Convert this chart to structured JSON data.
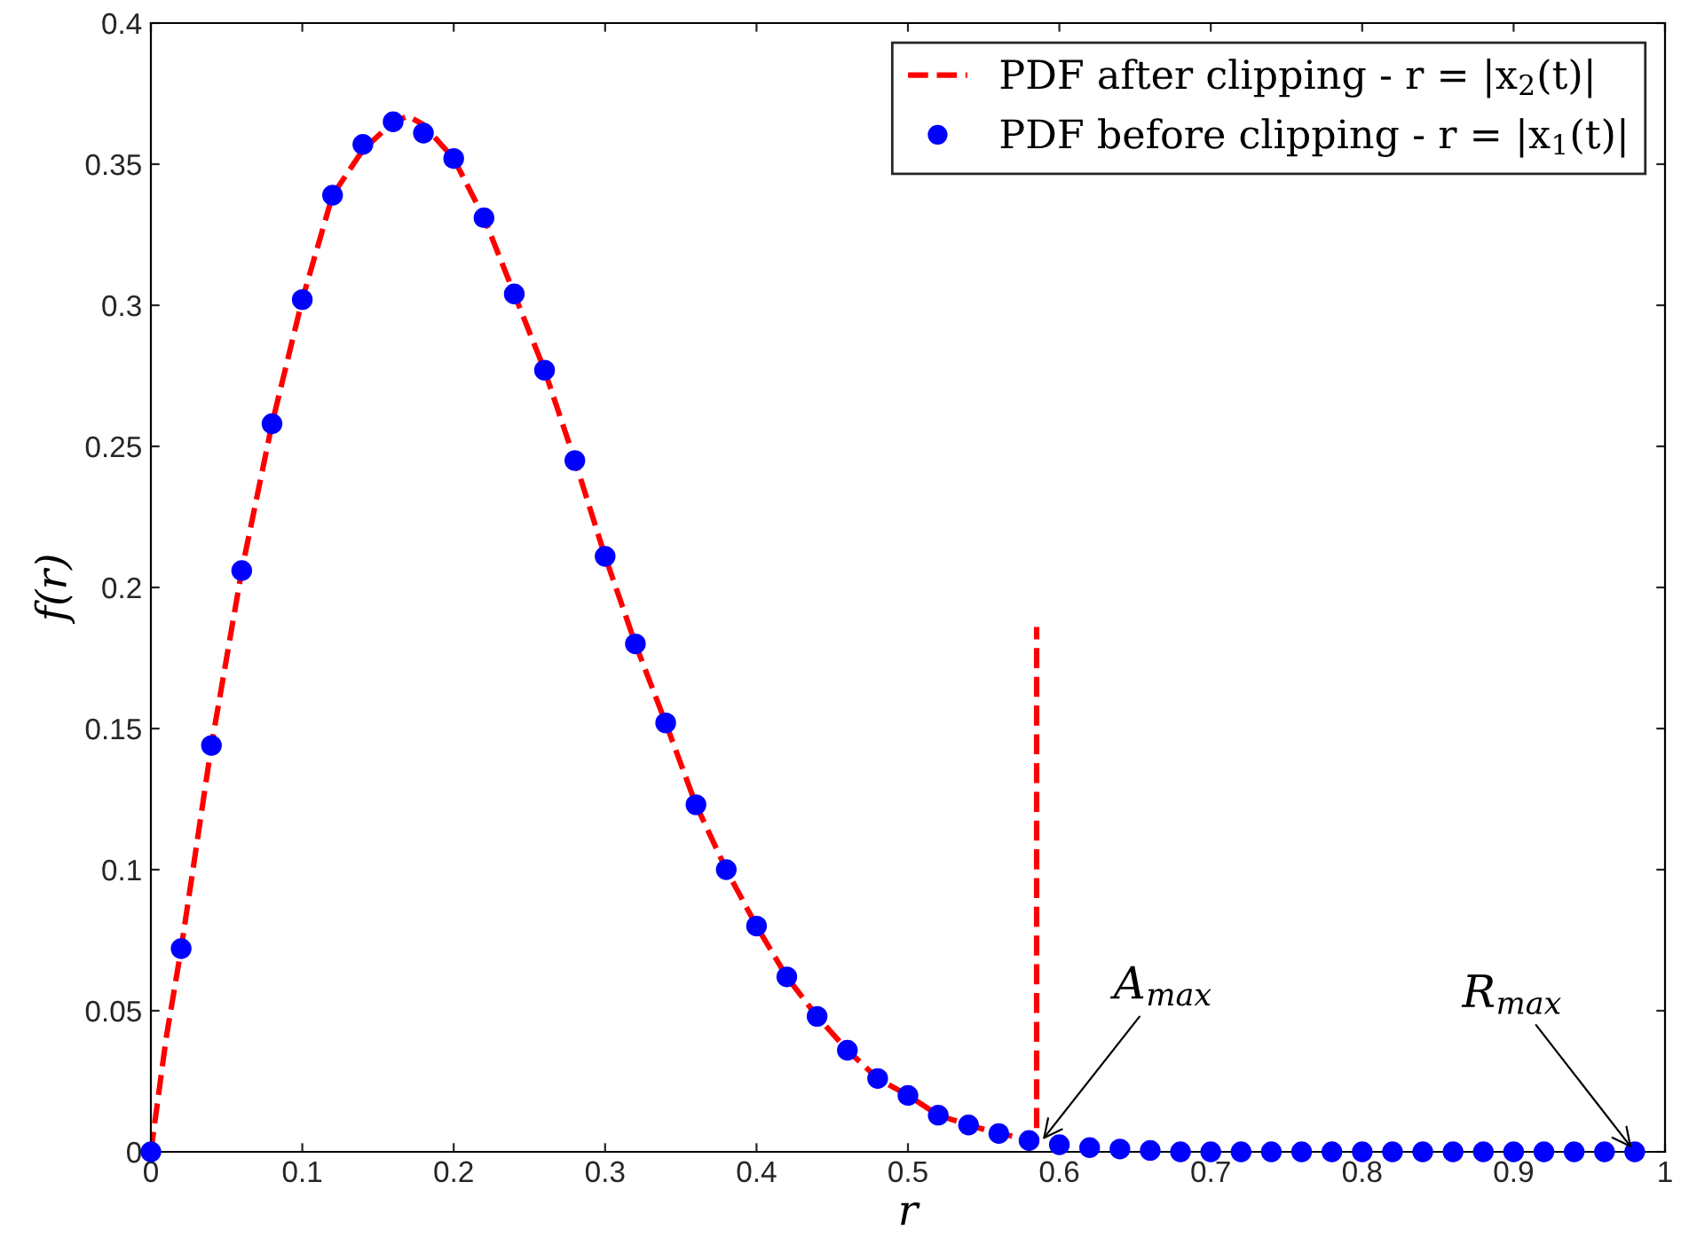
{
  "chart_data": {
    "type": "line",
    "xlabel": "r",
    "ylabel": "f(r)",
    "xlim": [
      0,
      1
    ],
    "ylim": [
      0,
      0.4
    ],
    "xticks": [
      0,
      0.1,
      0.2,
      0.3,
      0.4,
      0.5,
      0.6,
      0.7,
      0.8,
      0.9,
      1
    ],
    "yticks": [
      0,
      0.05,
      0.1,
      0.15,
      0.2,
      0.25,
      0.3,
      0.35,
      0.4
    ],
    "grid": false,
    "legend": "top right",
    "series": [
      {
        "name": "PDF after clipping - r = |x$_{2}$(t)|",
        "color": "#ff0000",
        "line_style": "dashed",
        "marker": "none",
        "x": [
          0,
          0.01,
          0.02,
          0.04,
          0.06,
          0.08,
          0.1,
          0.12,
          0.14,
          0.16,
          0.17,
          0.18,
          0.2,
          0.22,
          0.24,
          0.26,
          0.28,
          0.3,
          0.32,
          0.34,
          0.36,
          0.38,
          0.4,
          0.42,
          0.44,
          0.46,
          0.48,
          0.5,
          0.52,
          0.54,
          0.56,
          0.58,
          0.585,
          0.585
        ],
        "values": [
          0,
          0.04,
          0.072,
          0.144,
          0.206,
          0.258,
          0.302,
          0.339,
          0.355,
          0.365,
          0.367,
          0.364,
          0.352,
          0.331,
          0.304,
          0.277,
          0.245,
          0.211,
          0.18,
          0.152,
          0.123,
          0.1,
          0.08,
          0.062,
          0.048,
          0.036,
          0.026,
          0.02,
          0.013,
          0.0095,
          0.0065,
          0.0045,
          0.004,
          0.186
        ]
      },
      {
        "name": "PDF before clipping - r = |x$_{1}$(t)|",
        "type": "scatter",
        "color": "#0000ff",
        "marker": "circle",
        "x": [
          0,
          0.02,
          0.04,
          0.06,
          0.08,
          0.1,
          0.12,
          0.14,
          0.16,
          0.18,
          0.2,
          0.22,
          0.24,
          0.26,
          0.28,
          0.3,
          0.32,
          0.34,
          0.36,
          0.38,
          0.4,
          0.42,
          0.44,
          0.46,
          0.48,
          0.5,
          0.52,
          0.54,
          0.56,
          0.58,
          0.6,
          0.62,
          0.64,
          0.66,
          0.68,
          0.7,
          0.72,
          0.74,
          0.76,
          0.78,
          0.8,
          0.82,
          0.84,
          0.86,
          0.88,
          0.9,
          0.92,
          0.94,
          0.96,
          0.98
        ],
        "values": [
          0,
          0.072,
          0.144,
          0.206,
          0.258,
          0.302,
          0.339,
          0.357,
          0.365,
          0.361,
          0.352,
          0.331,
          0.304,
          0.277,
          0.245,
          0.211,
          0.18,
          0.152,
          0.123,
          0.1,
          0.08,
          0.062,
          0.048,
          0.036,
          0.026,
          0.02,
          0.013,
          0.0095,
          0.0065,
          0.004,
          0.0025,
          0.0015,
          0.001,
          0.0005,
          0,
          0,
          0,
          0,
          0,
          0,
          0,
          0,
          0,
          0,
          0,
          0,
          0,
          0,
          0,
          0
        ]
      }
    ],
    "annotations": [
      {
        "text": "A$_{max}$",
        "x": 0.587,
        "y": 0.003
      },
      {
        "text": "R$_{max}$",
        "x": 0.98,
        "y": 0
      }
    ]
  }
}
